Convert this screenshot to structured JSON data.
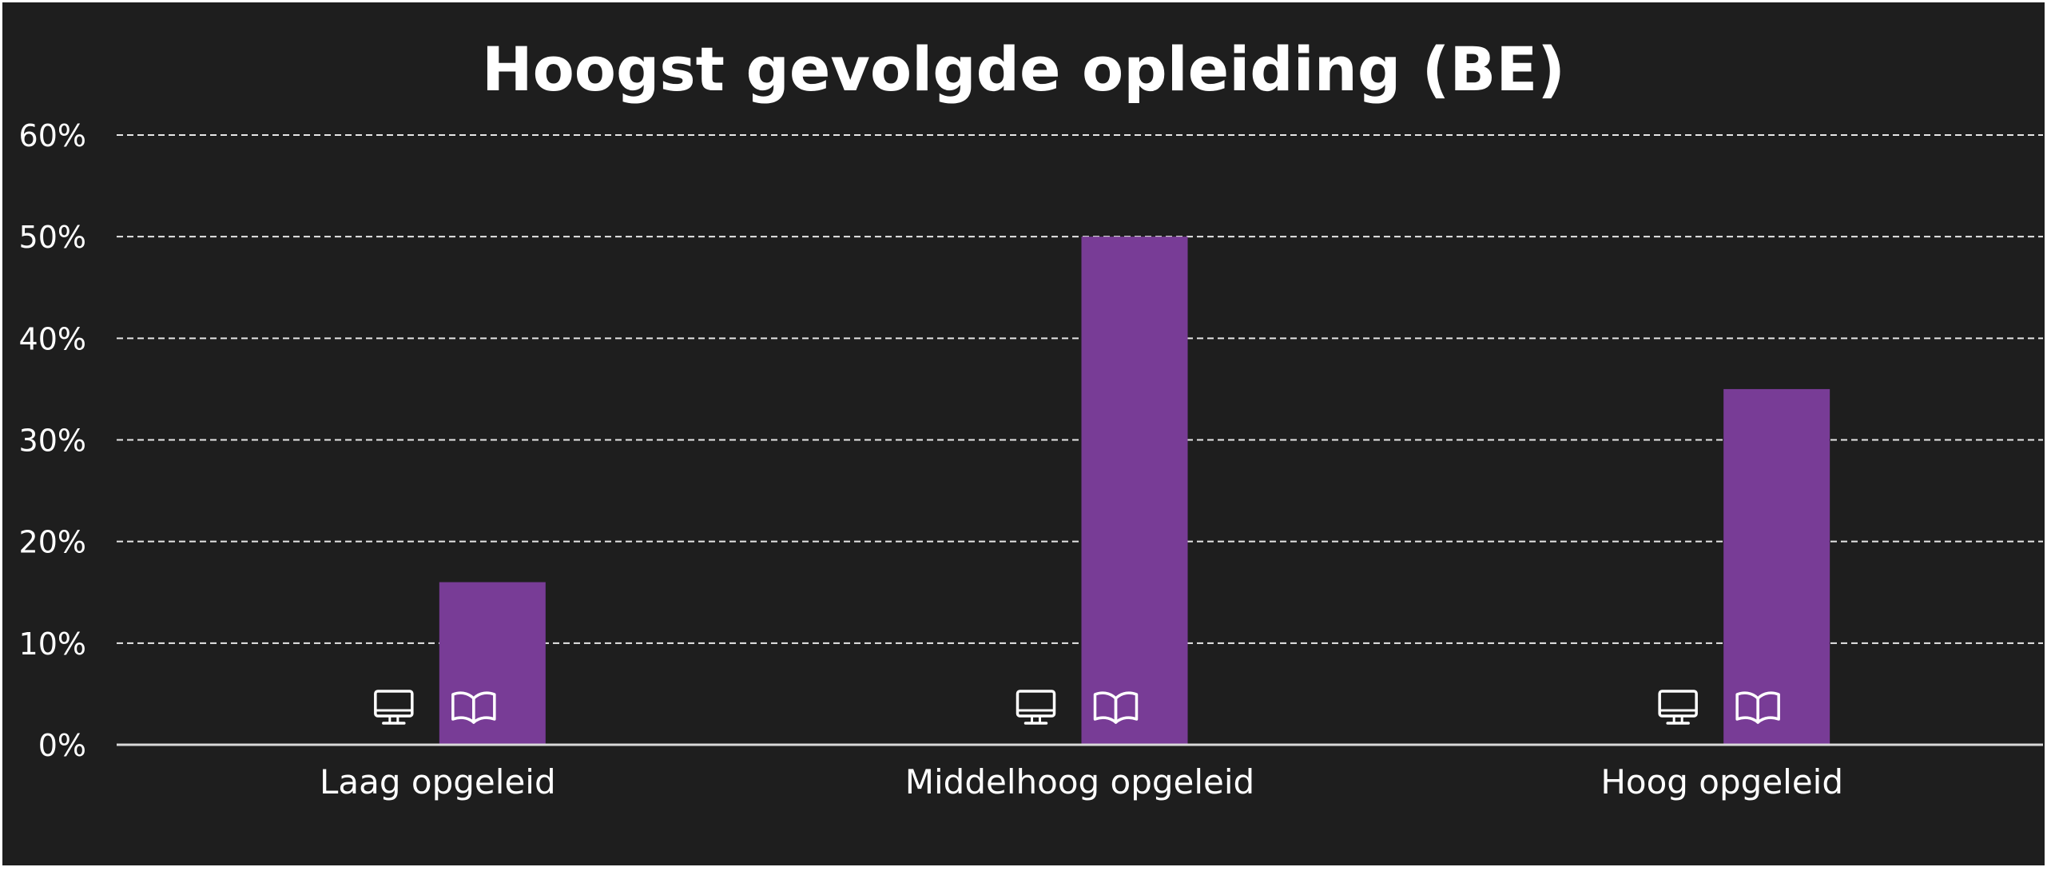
{
  "chart_data": {
    "type": "bar",
    "title": "Hoogst gevolgde opleiding (BE)",
    "xlabel": "",
    "ylabel": "",
    "categories": [
      "Laag opgeleid",
      "Middelhoog opgeleid",
      "Hoog opgeleid"
    ],
    "series": [
      {
        "values": [
          0,
          0,
          0
        ],
        "icon": "monitor-icon"
      },
      {
        "values": [
          16,
          50,
          35
        ],
        "icon": "open-book-icon",
        "color": "#783c96"
      }
    ],
    "ylim": [
      0,
      60
    ],
    "yticks": [
      "0%",
      "10%",
      "20%",
      "30%",
      "40%",
      "50%",
      "60%"
    ],
    "grid": true,
    "background": "#1e1e1e",
    "text_color": "#ffffff"
  }
}
